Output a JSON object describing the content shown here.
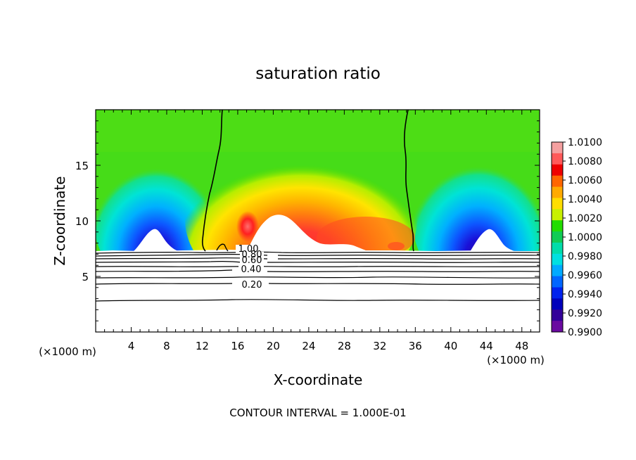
{
  "chart_data": {
    "type": "heatmap",
    "title": "saturation ratio",
    "xlabel": "X-coordinate",
    "ylabel": "Z-coordinate",
    "x_unit_left": "(×1000 m)",
    "x_unit_right": "(×1000 m)",
    "footer": "CONTOUR INTERVAL = 1.000E-01",
    "xlim": [
      0,
      50
    ],
    "ylim": [
      0,
      20
    ],
    "x_ticks": [
      4,
      8,
      12,
      16,
      20,
      24,
      28,
      32,
      36,
      40,
      44,
      48
    ],
    "y_ticks": [
      5,
      10,
      15
    ],
    "colorbar": {
      "levels": [
        "1.0100",
        "1.0080",
        "1.0060",
        "1.0040",
        "1.0020",
        "1.0000",
        "0.9980",
        "0.9960",
        "0.9940",
        "0.9920",
        "0.9900"
      ],
      "colors": [
        "#f4a0a0",
        "#ff5a5a",
        "#ee0000",
        "#ff6600",
        "#ffaa00",
        "#ffdd00",
        "#c8f000",
        "#22dd00",
        "#11cc55",
        "#00ddaa",
        "#00e0e0",
        "#00aaff",
        "#0066ff",
        "#0022ee",
        "#0000bb",
        "#330099",
        "#6a0aa0"
      ]
    },
    "contour_labels": [
      "1.00",
      "0.80",
      "0.60",
      "0.40",
      "0.20"
    ],
    "boundary_contour_level": "1.0000"
  }
}
